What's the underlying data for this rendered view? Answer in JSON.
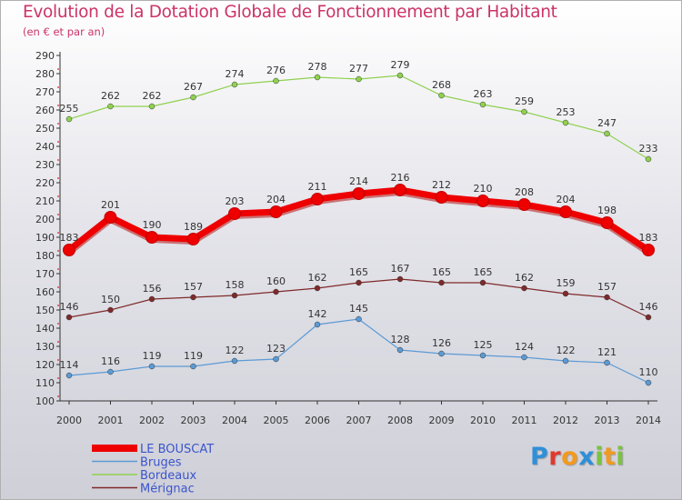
{
  "title": "Evolution de la Dotation Globale de Fonctionnement par Habitant",
  "subtitle": "(en € et par an)",
  "brand": "Proxiti",
  "colors": {
    "title": "#cc3366",
    "axis": "#333333",
    "grid_tick": "#cc0000",
    "labels": "#333333",
    "legend_text": "#3a55cc"
  },
  "chart_data": {
    "type": "line",
    "title": "Evolution de la Dotation Globale de Fonctionnement par Habitant",
    "subtitle": "(en € et par an)",
    "xlabel": "",
    "ylabel": "",
    "categories": [
      "2000",
      "2001",
      "2002",
      "2003",
      "2004",
      "2005",
      "2006",
      "2007",
      "2008",
      "2009",
      "2010",
      "2011",
      "2012",
      "2013",
      "2014"
    ],
    "ylim": [
      100,
      290
    ],
    "ytick_step": 10,
    "grid": false,
    "legend_position": "bottom-left",
    "series": [
      {
        "name": "LE BOUSCAT",
        "color": "#ee0000",
        "emphasis": true,
        "values": [
          183,
          201,
          190,
          189,
          203,
          204,
          211,
          214,
          216,
          212,
          210,
          208,
          204,
          198,
          183
        ]
      },
      {
        "name": "Bruges",
        "color": "#5b9bd5",
        "emphasis": false,
        "values": [
          114,
          116,
          119,
          119,
          122,
          123,
          142,
          145,
          128,
          126,
          125,
          124,
          122,
          121,
          110
        ]
      },
      {
        "name": "Bordeaux",
        "color": "#8fd14f",
        "emphasis": false,
        "values": [
          255,
          262,
          262,
          267,
          274,
          276,
          278,
          277,
          279,
          268,
          263,
          259,
          253,
          247,
          233
        ]
      },
      {
        "name": "Mérignac",
        "color": "#7f2a2a",
        "emphasis": false,
        "values": [
          146,
          150,
          156,
          157,
          158,
          160,
          162,
          165,
          167,
          165,
          165,
          162,
          159,
          157,
          146
        ]
      }
    ]
  },
  "logo_letters": [
    {
      "ch": "P",
      "color": "#2f8fd8"
    },
    {
      "ch": "r",
      "color": "#e0392b"
    },
    {
      "ch": "o",
      "color": "#f29a1f"
    },
    {
      "ch": "x",
      "color": "#2f8fd8"
    },
    {
      "ch": "i",
      "color": "#7cc242"
    },
    {
      "ch": "t",
      "color": "#f29a1f"
    },
    {
      "ch": "i",
      "color": "#7cc242"
    }
  ]
}
